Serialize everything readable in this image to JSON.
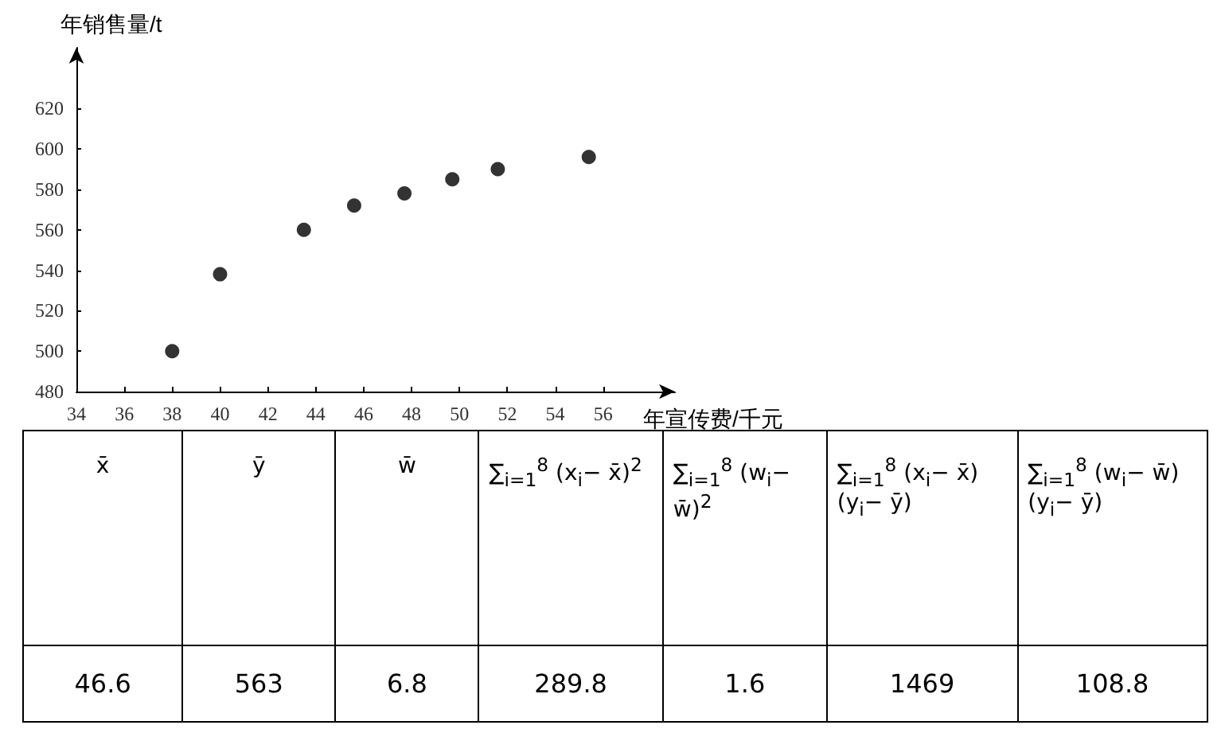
{
  "chart_data": {
    "type": "scatter",
    "xlabel": "年宣传费/千元",
    "ylabel": "年销售量/t",
    "x": [
      38,
      40,
      43.5,
      45.6,
      47.7,
      49.7,
      51.6,
      55.4
    ],
    "series": [
      {
        "color": "#000000",
        "values": [
          500,
          538,
          560,
          572,
          578,
          585,
          590,
          596
        ]
      }
    ],
    "xlim": [
      34,
      59
    ],
    "ylim": [
      480,
      650
    ],
    "xticks": [
      34,
      36,
      38,
      40,
      42,
      44,
      46,
      48,
      50,
      52,
      54,
      56
    ],
    "yticks": [
      480,
      500,
      520,
      540,
      560,
      580,
      600,
      620
    ],
    "marker": "circle",
    "annotations": [
      "x̄",
      "ȳ",
      "w̄",
      "∑$_{i=1}$$^{8}$ (x$_{i}$− x̄)$^{2}$",
      "∑$_{i=1}$$^{8}$ (w$_{i}$− w̄)$^{2}$",
      "∑$_{i=1}$$^{8}$ (x$_{i}$− x̄)(y$_{i}$− ȳ)",
      "∑$_{i=1}$$^{8}$ (w$_{i}$− w̄)(y$_{i}$− ȳ)",
      "46.6",
      "563",
      "6.8",
      "289.8",
      "1.6",
      "1469",
      "108.8"
    ]
  }
}
